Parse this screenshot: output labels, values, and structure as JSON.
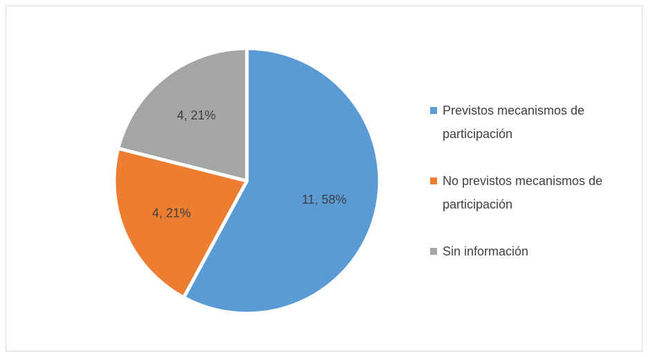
{
  "chart_data": {
    "type": "pie",
    "categories": [
      "Previstos mecanismos de participación",
      "No previstos mecanismos de participación",
      "Sin información"
    ],
    "values": [
      11,
      4,
      4
    ],
    "value_labels": [
      "11, 58%",
      "4, 21%",
      "4, 21%"
    ],
    "colors": [
      "#5b9bd5",
      "#ed7d31",
      "#a5a5a5"
    ],
    "legend": "right"
  }
}
